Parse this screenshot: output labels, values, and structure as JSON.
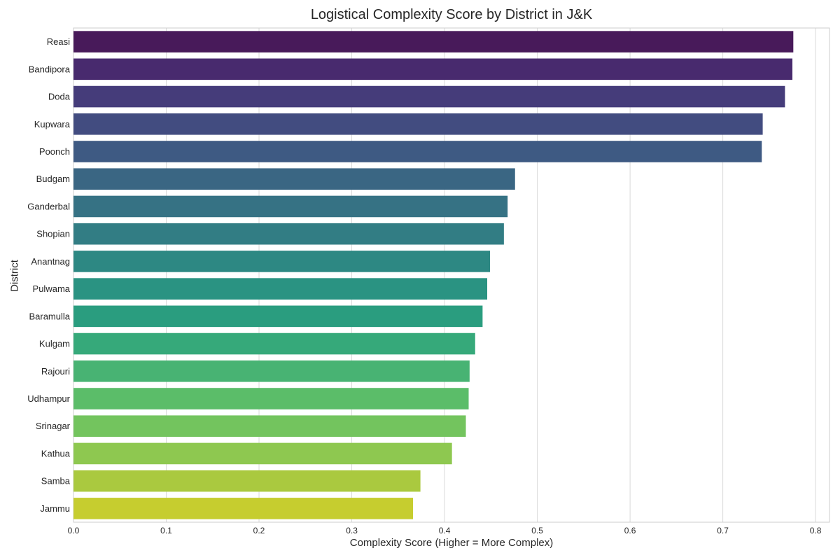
{
  "chart_data": {
    "type": "bar",
    "orientation": "horizontal",
    "title": "Logistical Complexity Score by District in J&K",
    "xlabel": "Complexity Score (Higher = More Complex)",
    "ylabel": "District",
    "xlim": [
      0,
      0.815
    ],
    "xticks": [
      0.0,
      0.1,
      0.2,
      0.3,
      0.4,
      0.5,
      0.6,
      0.7,
      0.8
    ],
    "xtick_labels": [
      "0.0",
      "0.1",
      "0.2",
      "0.3",
      "0.4",
      "0.5",
      "0.6",
      "0.7",
      "0.8"
    ],
    "grid": true,
    "legend": "none",
    "categories": [
      "Reasi",
      "Bandipora",
      "Doda",
      "Kupwara",
      "Poonch",
      "Budgam",
      "Ganderbal",
      "Shopian",
      "Anantnag",
      "Pulwama",
      "Baramulla",
      "Kulgam",
      "Rajouri",
      "Udhampur",
      "Srinagar",
      "Kathua",
      "Samba",
      "Jammu"
    ],
    "values": [
      0.776,
      0.775,
      0.767,
      0.743,
      0.742,
      0.476,
      0.468,
      0.464,
      0.449,
      0.446,
      0.441,
      0.433,
      0.427,
      0.426,
      0.423,
      0.408,
      0.374,
      0.366
    ],
    "colors": [
      "#481a5a",
      "#482a6e",
      "#453c7a",
      "#424c80",
      "#3e5a83",
      "#3a6683",
      "#367284",
      "#327d84",
      "#2d8883",
      "#2a9382",
      "#2a9d7f",
      "#36a97a",
      "#48b373",
      "#5bbd69",
      "#73c45e",
      "#8ec850",
      "#aac93f",
      "#c6cd2f"
    ]
  }
}
